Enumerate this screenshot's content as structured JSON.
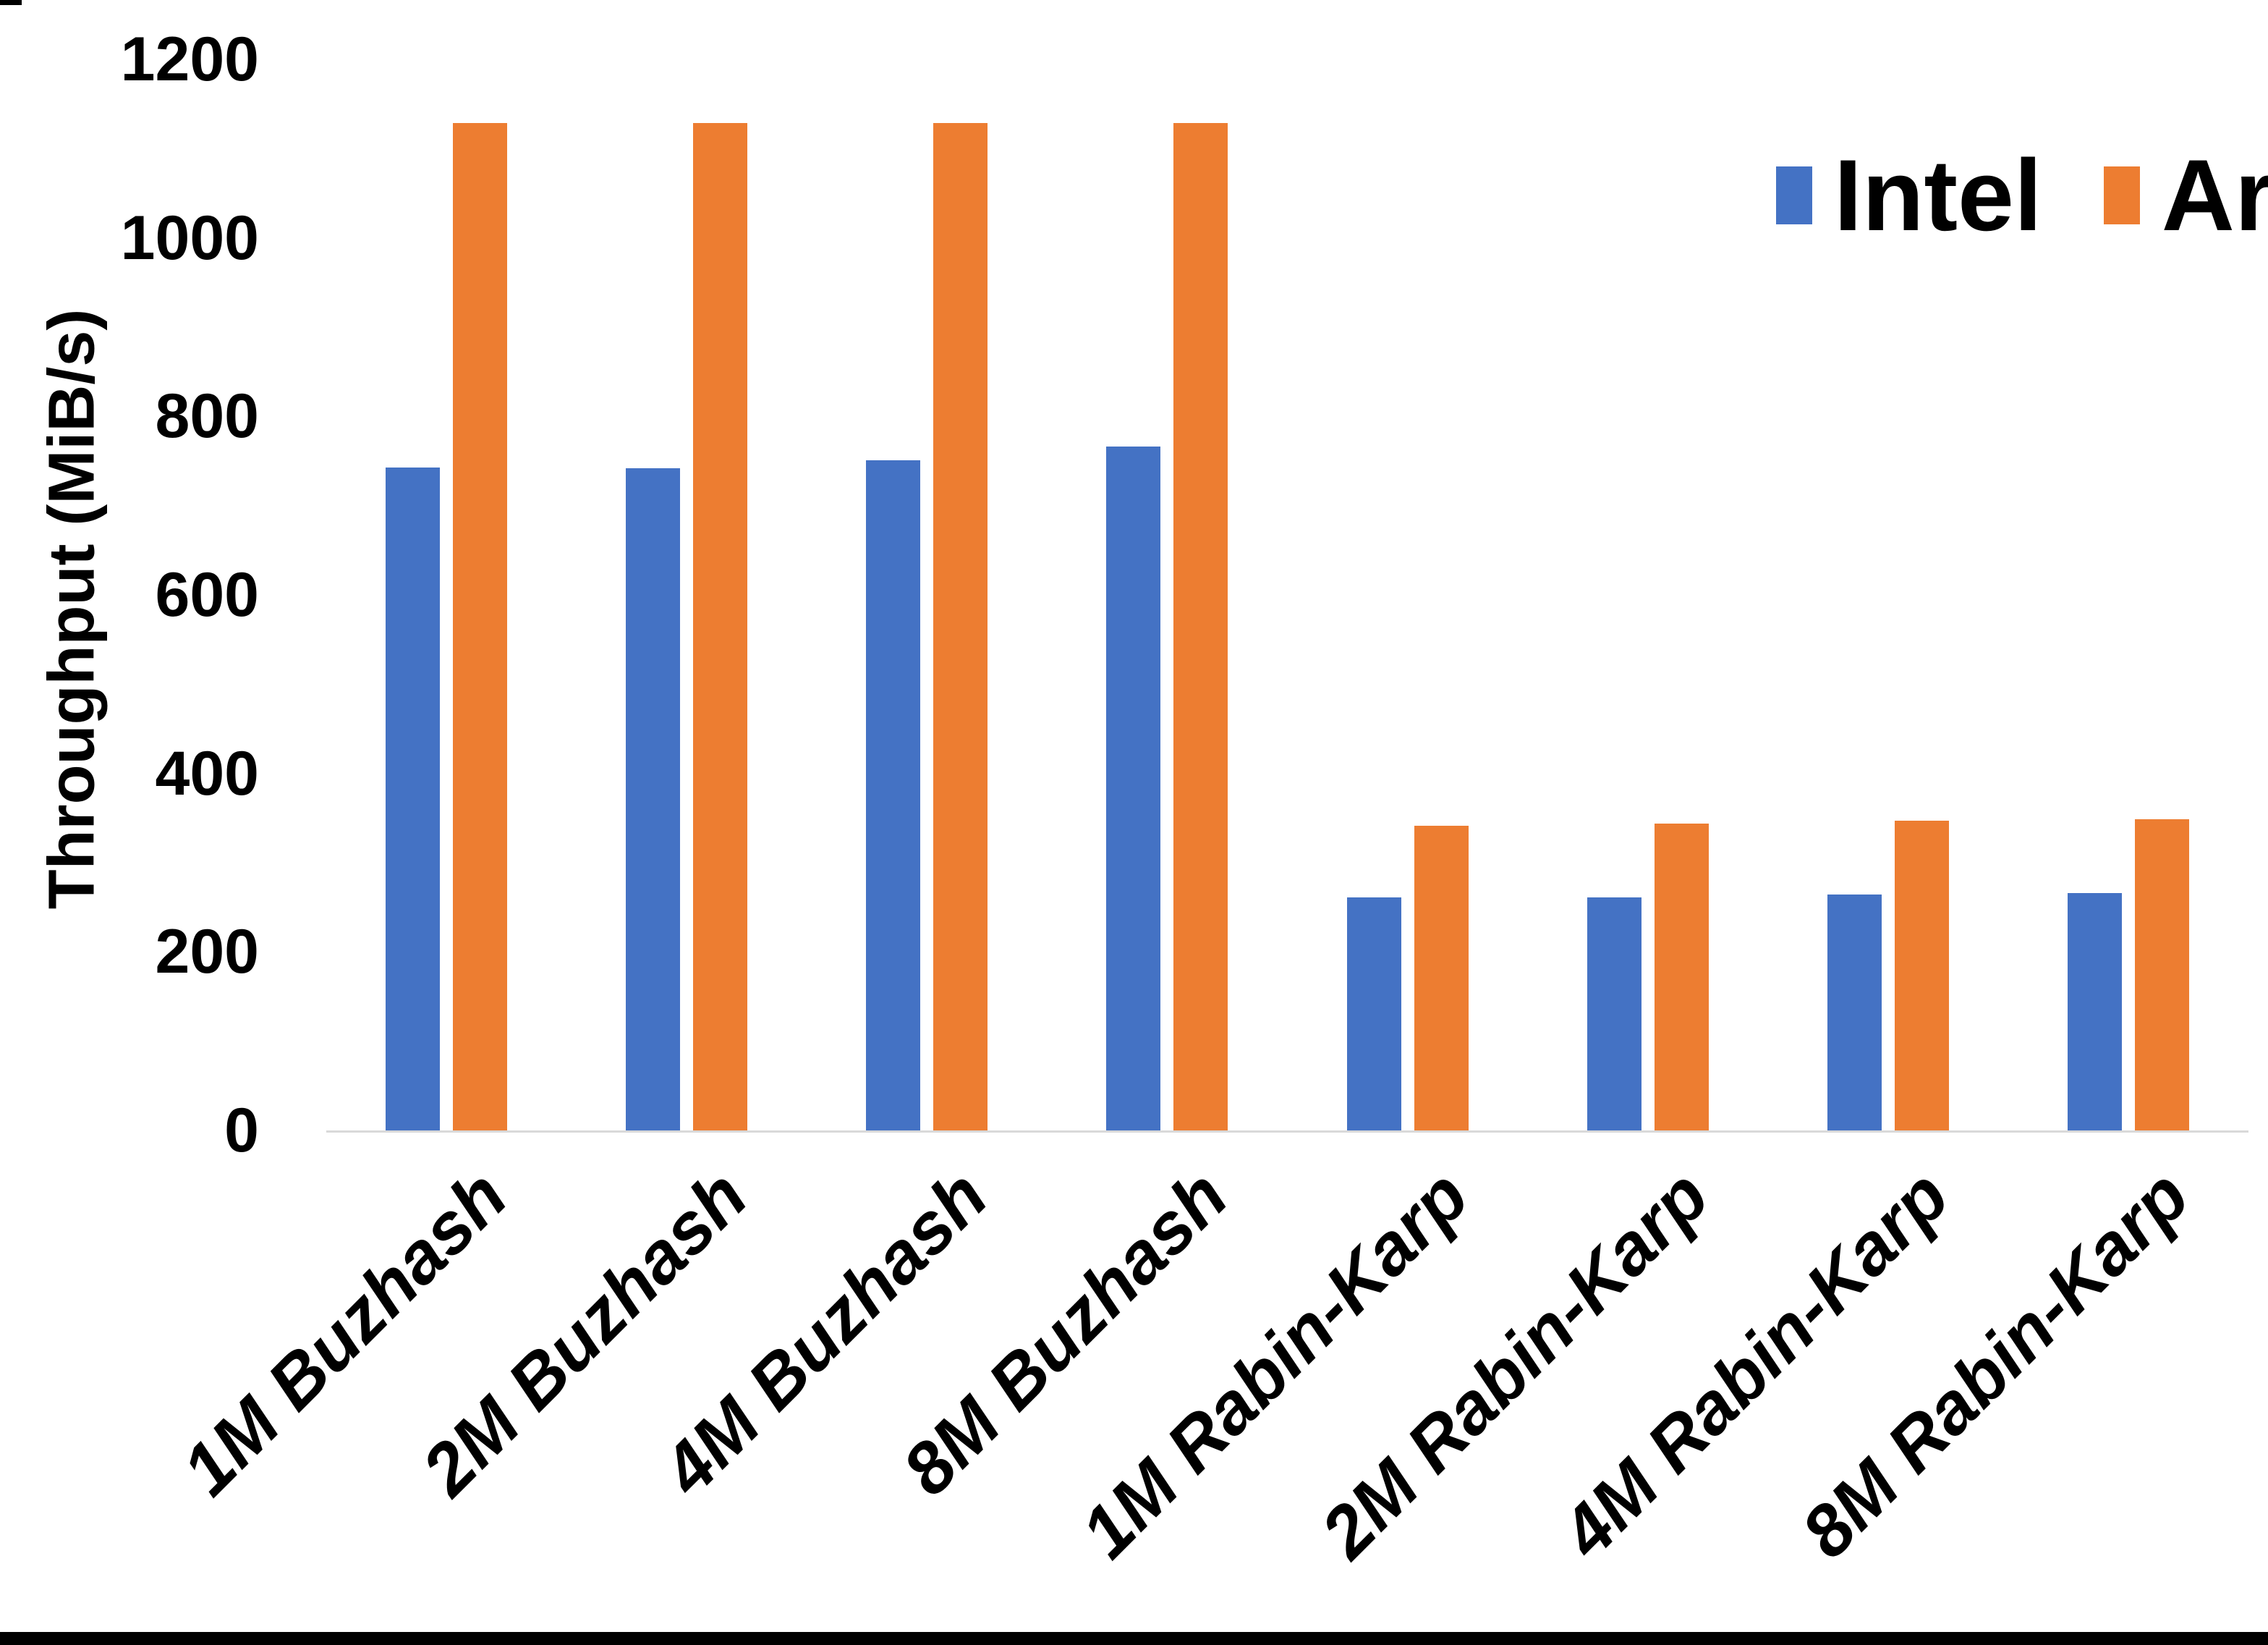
{
  "chart_data": {
    "type": "bar",
    "title": "",
    "categories": [
      "1M Buzhash",
      "2M Buzhash",
      "4M Buzhash",
      "8M Buzhash",
      "1M Rabin-Karp",
      "2M Rabin-Karp",
      "4M Rabin-Karp",
      "8M Rabin-Karp"
    ],
    "series": [
      {
        "name": "Intel",
        "color": "#4472C4",
        "values": [
          743,
          742,
          751,
          766,
          261,
          261,
          264,
          266
        ]
      },
      {
        "name": "Arm",
        "color": "#ED7D31",
        "values": [
          1129,
          1129,
          1129,
          1129,
          341,
          344,
          347,
          349
        ]
      }
    ],
    "xlabel": "",
    "ylabel": "Throughput (MiB/s)",
    "ylim": [
      0,
      1200
    ],
    "ytick_step": 200,
    "yticks": [
      "0",
      "200",
      "400",
      "600",
      "800",
      "1000",
      "1200"
    ],
    "grid": false,
    "legend_position": "top-right"
  },
  "legend": {
    "items": [
      {
        "label": "Intel",
        "color": "#4472C4"
      },
      {
        "label": "Arm",
        "color": "#ED7D31"
      }
    ]
  },
  "colors": {
    "background": "#FFFFFF",
    "axis_line": "#D9D9D9",
    "text": "#000000",
    "bottom_bar": "#000000"
  }
}
